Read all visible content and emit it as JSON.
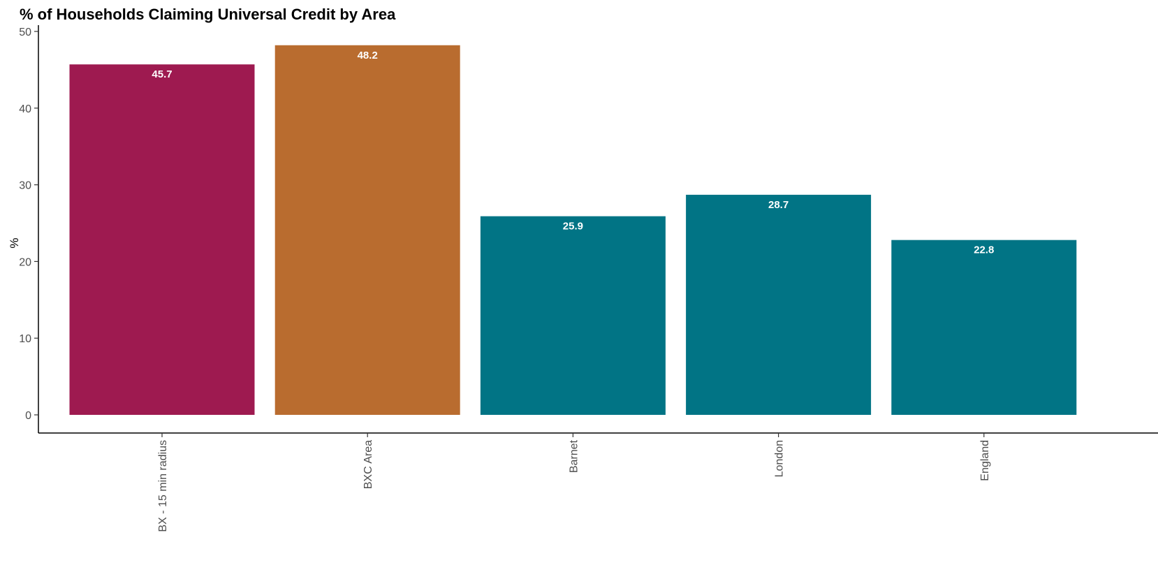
{
  "chart_data": {
    "type": "bar",
    "title": "% of Households Claiming Universal Credit by Area",
    "xlabel": "",
    "ylabel": "%",
    "ylim": [
      0,
      50
    ],
    "yticks": [
      0,
      10,
      20,
      30,
      40,
      50
    ],
    "categories": [
      "BX - 15 min radius",
      "BXC Area",
      "Barnet",
      "London",
      "England"
    ],
    "values": [
      45.7,
      48.2,
      25.9,
      28.7,
      22.8
    ],
    "data_labels": [
      "45.7",
      "48.2",
      "25.9",
      "28.7",
      "22.8"
    ],
    "bar_colors": [
      "#9E1A50",
      "#B96C2F",
      "#017485",
      "#017485",
      "#017485"
    ],
    "legend": "none",
    "grid": false
  }
}
